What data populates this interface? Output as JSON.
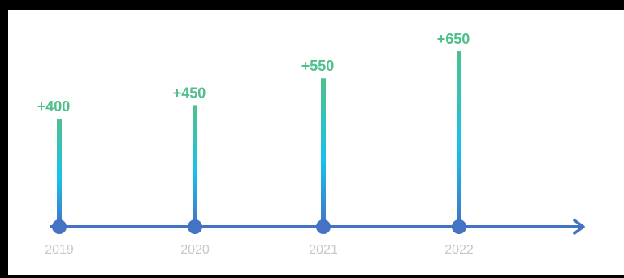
{
  "chart_data": {
    "type": "bar",
    "categories": [
      "2019",
      "2020",
      "2021",
      "2022"
    ],
    "values": [
      400,
      450,
      550,
      650
    ],
    "value_labels": [
      "+400",
      "+450",
      "+550",
      "+650"
    ],
    "title": "",
    "xlabel": "",
    "ylabel": "",
    "ylim": [
      0,
      650
    ],
    "grid": false,
    "legend": "none"
  },
  "colors": {
    "axis": "#4472c4",
    "bar_top": "#50c08a",
    "bar_mid": "#17c2ea",
    "bar_bottom": "#4472c4",
    "value_label": "#50c08a",
    "year_label": "#c7c7c7"
  }
}
